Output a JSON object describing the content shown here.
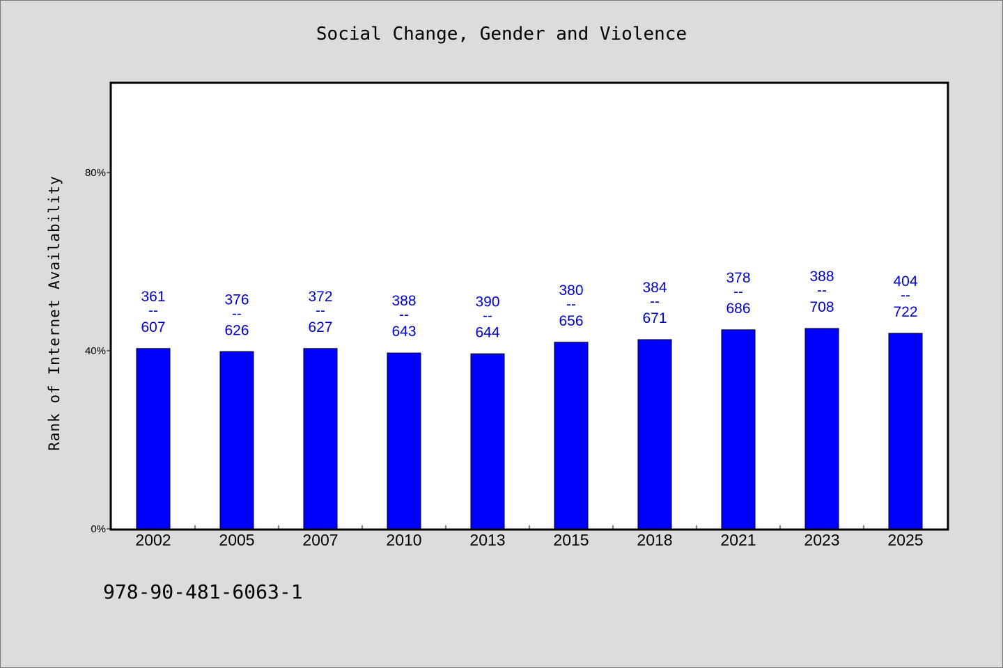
{
  "chart_data": {
    "type": "bar",
    "title": "Social Change, Gender and Violence",
    "xlabel": "",
    "ylabel": "Rank of Internet Availability",
    "categories": [
      "2002",
      "2005",
      "2007",
      "2010",
      "2013",
      "2015",
      "2018",
      "2021",
      "2023",
      "2025"
    ],
    "values": [
      0.405,
      0.398,
      0.405,
      0.395,
      0.393,
      0.419,
      0.425,
      0.447,
      0.45,
      0.439
    ],
    "data_labels": [
      {
        "top": "361",
        "sep": "--",
        "bottom": "607"
      },
      {
        "top": "376",
        "sep": "--",
        "bottom": "626"
      },
      {
        "top": "372",
        "sep": "--",
        "bottom": "627"
      },
      {
        "top": "388",
        "sep": "--",
        "bottom": "643"
      },
      {
        "top": "390",
        "sep": "--",
        "bottom": "644"
      },
      {
        "top": "380",
        "sep": "--",
        "bottom": "656"
      },
      {
        "top": "384",
        "sep": "--",
        "bottom": "671"
      },
      {
        "top": "378",
        "sep": "--",
        "bottom": "686"
      },
      {
        "top": "388",
        "sep": "--",
        "bottom": "708"
      },
      {
        "top": "404",
        "sep": "--",
        "bottom": "722"
      }
    ],
    "yticks": [
      {
        "value": 0,
        "label": "0%"
      },
      {
        "value": 0.4,
        "label": "40%"
      },
      {
        "value": 0.8,
        "label": "80%"
      }
    ],
    "ylim": [
      0,
      1.0
    ],
    "grid": false,
    "legend": "none",
    "colors": {
      "bar": "#0000ff",
      "label": "#0000cc",
      "plot_background": "#ffffff",
      "figure_background": "#dcdcdc"
    }
  },
  "footer": {
    "code": "978-90-481-6063-1"
  }
}
